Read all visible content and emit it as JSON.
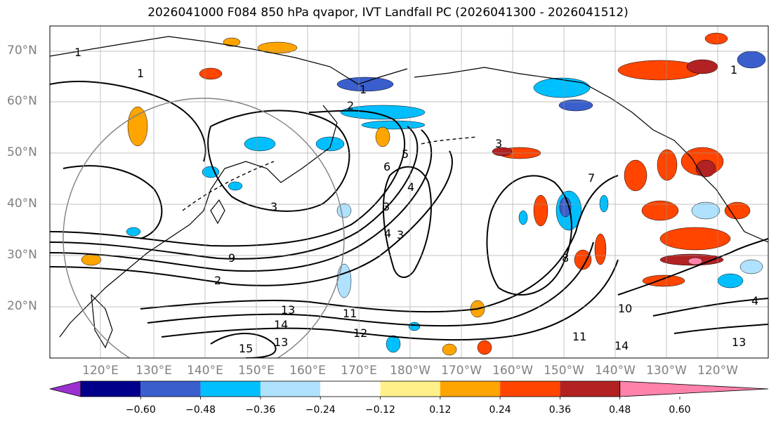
{
  "title": "2026041000 F084 850 hPa qvapor, IVT Landfall PC (2026041300 - 2026041512)",
  "lat_labels": [
    "70°N",
    "60°N",
    "50°N",
    "40°N",
    "30°N",
    "20°N"
  ],
  "lon_labels": [
    "120°E",
    "130°E",
    "140°E",
    "150°E",
    "160°E",
    "170°E",
    "180°W",
    "170°W",
    "160°W",
    "150°W",
    "140°W",
    "130°W",
    "120°W"
  ],
  "colorbar": {
    "colors": [
      "#9b30d0",
      "#00008b",
      "#3a5fcd",
      "#00bfff",
      "#b0e2ff",
      "#ffffff",
      "#fff08a",
      "#ffa500",
      "#ff4500",
      "#b22222",
      "#ff82ab"
    ],
    "tick_labels": [
      "−0.60",
      "−0.48",
      "−0.36",
      "−0.24",
      "−0.12",
      "0.12",
      "0.24",
      "0.36",
      "0.48",
      "0.60"
    ]
  },
  "contour_labels": [
    "1",
    "1",
    "1",
    "2",
    "3",
    "3",
    "4",
    "5",
    "6",
    "7",
    "8",
    "9",
    "10",
    "11",
    "12",
    "13",
    "14",
    "15",
    "1",
    "2",
    "3",
    "4",
    "13",
    "11",
    "14",
    "13",
    "4",
    "3"
  ]
}
